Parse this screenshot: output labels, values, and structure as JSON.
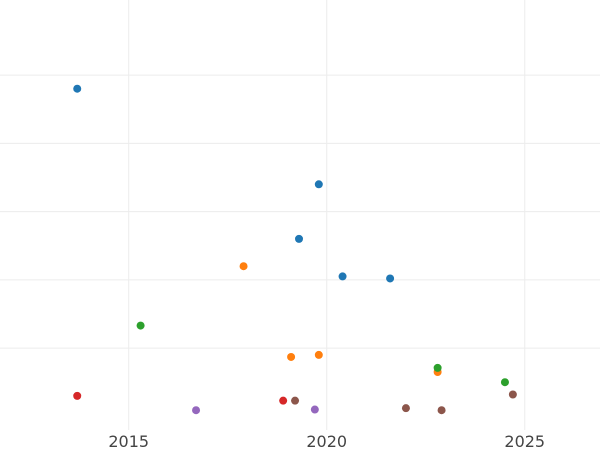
{
  "chart_data": {
    "type": "scatter",
    "title": "",
    "xlabel": "",
    "ylabel": "",
    "x_ticks": [
      {
        "value": 2015,
        "label": "2015"
      },
      {
        "value": 2020,
        "label": "2020"
      },
      {
        "value": 2025,
        "label": "2025"
      }
    ],
    "y_gridlines": [
      1,
      2,
      3,
      4,
      5
    ],
    "xlim": [
      2011.75,
      2026.9
    ],
    "ylim": [
      -0.2,
      6.1
    ],
    "grid": true,
    "legend": "none",
    "series": [
      {
        "color": "#1f77b4",
        "points": [
          {
            "x": 2013.7,
            "y": 4.8
          },
          {
            "x": 2019.8,
            "y": 3.4
          },
          {
            "x": 2019.3,
            "y": 2.6
          },
          {
            "x": 2020.4,
            "y": 2.05
          },
          {
            "x": 2021.6,
            "y": 2.02
          }
        ]
      },
      {
        "color": "#ff7f0e",
        "points": [
          {
            "x": 2017.9,
            "y": 2.2
          },
          {
            "x": 2019.1,
            "y": 0.87
          },
          {
            "x": 2019.8,
            "y": 0.9
          },
          {
            "x": 2022.8,
            "y": 0.65
          }
        ]
      },
      {
        "color": "#2ca02c",
        "points": [
          {
            "x": 2015.3,
            "y": 1.33
          },
          {
            "x": 2022.8,
            "y": 0.71
          },
          {
            "x": 2024.5,
            "y": 0.5
          }
        ]
      },
      {
        "color": "#d62728",
        "points": [
          {
            "x": 2013.7,
            "y": 0.3
          },
          {
            "x": 2018.9,
            "y": 0.23
          }
        ]
      },
      {
        "color": "#9467bd",
        "points": [
          {
            "x": 2016.7,
            "y": 0.09
          },
          {
            "x": 2019.7,
            "y": 0.1
          }
        ]
      },
      {
        "color": "#8c564b",
        "points": [
          {
            "x": 2019.2,
            "y": 0.23
          },
          {
            "x": 2022.0,
            "y": 0.12
          },
          {
            "x": 2022.9,
            "y": 0.09
          },
          {
            "x": 2024.7,
            "y": 0.32
          }
        ]
      }
    ]
  }
}
